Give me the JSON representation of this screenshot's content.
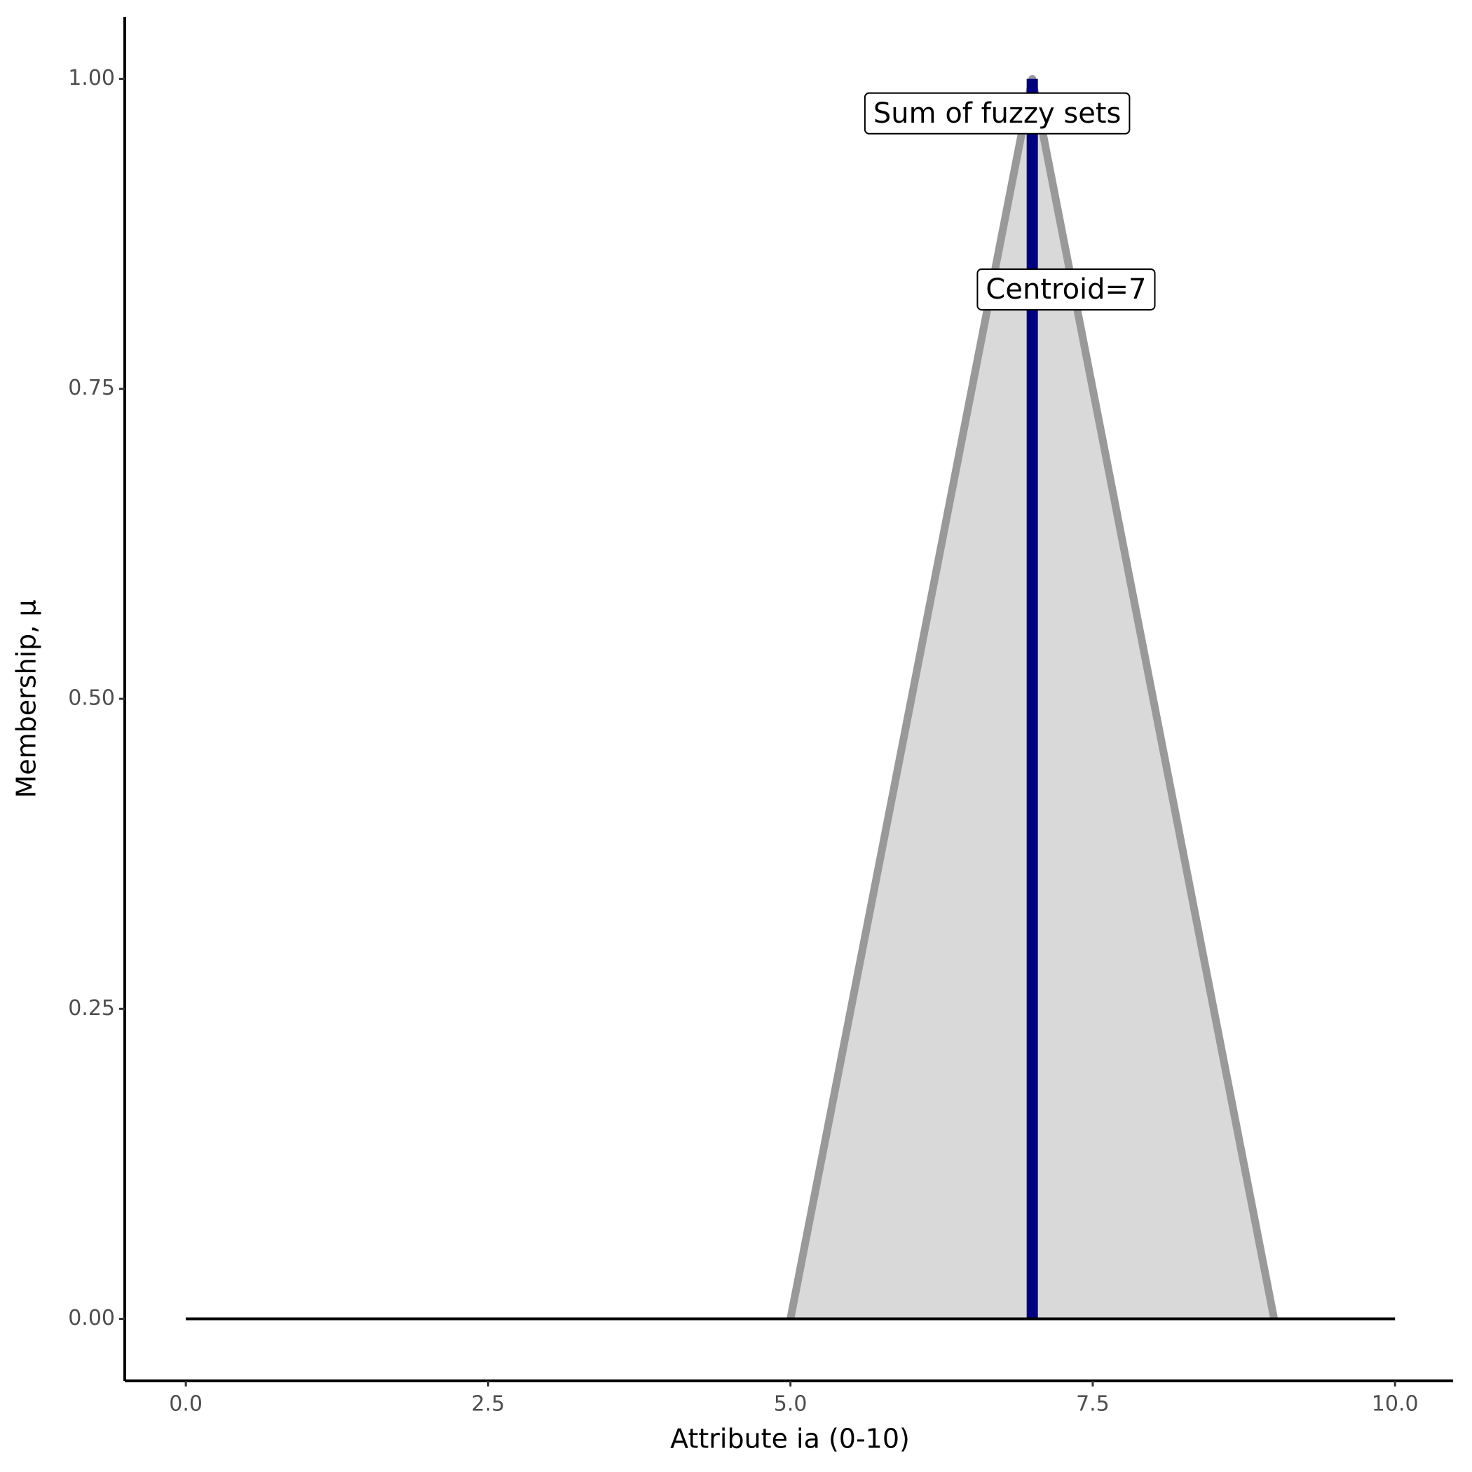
{
  "chart_data": {
    "type": "area",
    "x_label": "Attribute ia (0-10)",
    "y_label": "Membership, μ",
    "xlim": [
      -0.505,
      10.48
    ],
    "ylim": [
      -0.05,
      1.05
    ],
    "xticks": [
      {
        "value": 0,
        "label": "0.0"
      },
      2.5,
      {
        "value": 5,
        "label": "5.0"
      },
      7.5,
      {
        "value": 10,
        "label": "10.0"
      }
    ],
    "yticks": [
      {
        "value": 0,
        "label": "0.00"
      },
      {
        "value": 0.25,
        "label": "0.25"
      },
      {
        "value": 0.5,
        "label": "0.50"
      },
      {
        "value": 0.75,
        "label": "0.75"
      },
      {
        "value": 1,
        "label": "1.00"
      }
    ],
    "series": [
      {
        "color": "#999999",
        "fill": "#d9d9d9",
        "x": [
          5,
          7,
          9
        ],
        "values": [
          0,
          1,
          0
        ]
      },
      {
        "color": "#000080",
        "x": [
          7,
          7
        ],
        "values": [
          0,
          1
        ]
      },
      {
        "color": "#000000",
        "x": [
          0,
          10
        ],
        "values": [
          0,
          0
        ]
      }
    ],
    "annotations": [
      {
        "text": "Sum of fuzzy sets",
        "x": 6.71,
        "y": 0.971
      },
      {
        "text": "Centroid=7",
        "x": 7.28,
        "y": 0.829
      }
    ]
  }
}
